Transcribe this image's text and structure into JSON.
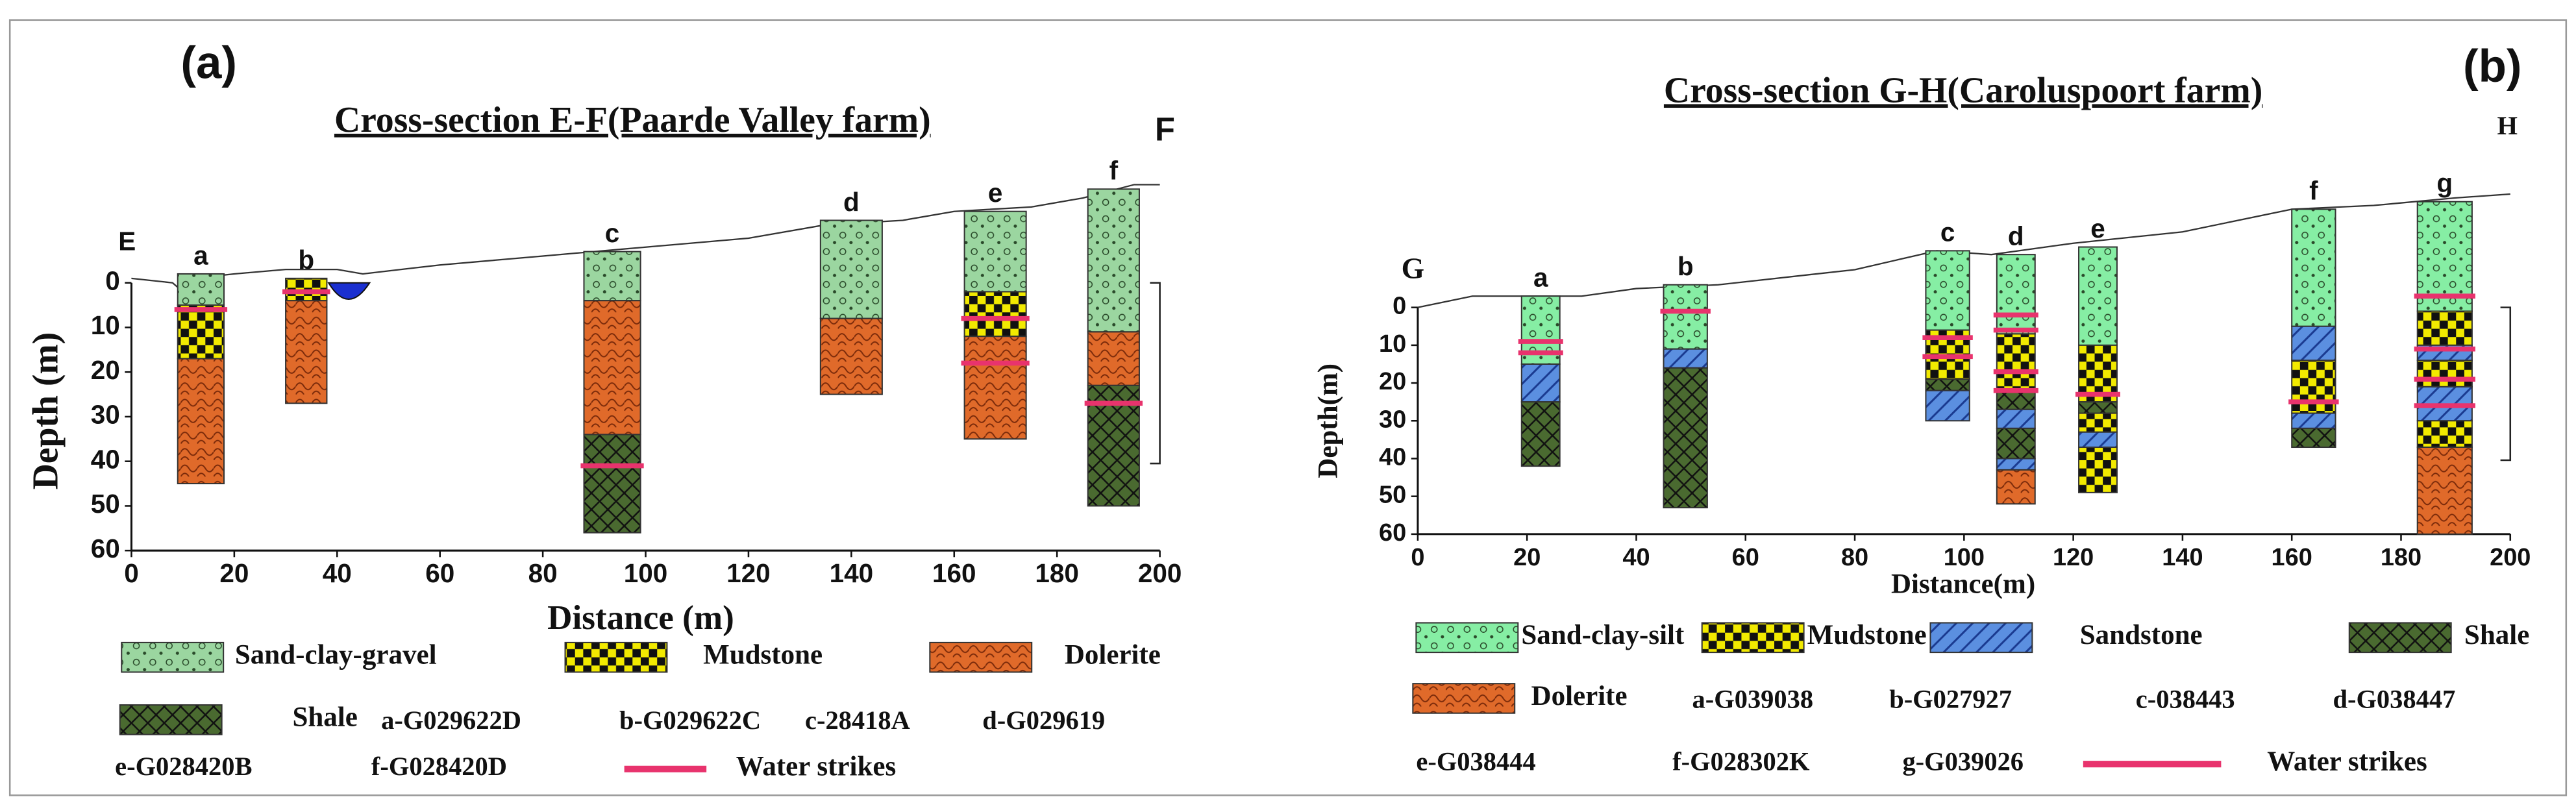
{
  "panels": [
    {
      "label": "(a)",
      "title": "Cross-section E-F(Paarde Valley farm)",
      "start": "E",
      "end": "F",
      "xlabel": "Distance (m)",
      "ylabel": "Depth (m)",
      "xlim": [
        0,
        200
      ],
      "xticks": [
        0,
        20,
        40,
        60,
        80,
        100,
        120,
        140,
        160,
        180,
        200
      ],
      "ylim": [
        0,
        60
      ],
      "yticks": [
        0,
        10,
        20,
        30,
        40,
        50,
        60
      ],
      "surface": {
        "x": [
          0,
          8,
          10,
          12,
          20,
          30,
          40,
          45,
          60,
          80,
          100,
          120,
          135,
          150,
          160,
          175,
          185,
          195,
          200
        ],
        "depth": [
          -1,
          0,
          2,
          -1,
          -2,
          -3,
          -3,
          -2,
          -4,
          -6,
          -8,
          -10,
          -13,
          -14,
          -16,
          -17,
          -19,
          -22,
          -22
        ]
      },
      "lithologies": [
        {
          "name": "Sand-clay-gravel",
          "color": "#9bd6a0",
          "texture": "gravel"
        },
        {
          "name": "Mudstone",
          "color": "#f2ea00",
          "texture": "checker"
        },
        {
          "name": "Dolerite",
          "color": "#e06a2a",
          "texture": "brick"
        },
        {
          "name": "Shale",
          "color": "#4a6a30",
          "texture": "crosshatch"
        }
      ],
      "boreholes": [
        {
          "label": "a",
          "x": [
            9,
            18
          ],
          "water": [
            6
          ],
          "layers": [
            {
              "rock": "Sand-clay-gravel",
              "top": -2,
              "bottom": 5
            },
            {
              "rock": "Mudstone",
              "top": 5,
              "bottom": 17
            },
            {
              "rock": "Dolerite",
              "top": 17,
              "bottom": 45
            }
          ]
        },
        {
          "label": "b",
          "x": [
            30,
            38
          ],
          "water": [
            2
          ],
          "layers": [
            {
              "rock": "Mudstone",
              "top": -1,
              "bottom": 4
            },
            {
              "rock": "Dolerite",
              "top": 4,
              "bottom": 27
            }
          ]
        },
        {
          "label": "c",
          "x": [
            88,
            99
          ],
          "water": [
            41
          ],
          "layers": [
            {
              "rock": "Sand-clay-gravel",
              "top": -7,
              "bottom": 4
            },
            {
              "rock": "Dolerite",
              "top": 4,
              "bottom": 34
            },
            {
              "rock": "Shale",
              "top": 34,
              "bottom": 56
            }
          ]
        },
        {
          "label": "d",
          "x": [
            134,
            146
          ],
          "water": [],
          "layers": [
            {
              "rock": "Sand-clay-gravel",
              "top": -14,
              "bottom": 8
            },
            {
              "rock": "Dolerite",
              "top": 8,
              "bottom": 25
            }
          ]
        },
        {
          "label": "e",
          "x": [
            162,
            174
          ],
          "water": [
            8,
            18
          ],
          "layers": [
            {
              "rock": "Sand-clay-gravel",
              "top": -16,
              "bottom": 2
            },
            {
              "rock": "Mudstone",
              "top": 2,
              "bottom": 12
            },
            {
              "rock": "Dolerite",
              "top": 12,
              "bottom": 35
            }
          ]
        },
        {
          "label": "f",
          "x": [
            186,
            196
          ],
          "water": [
            27
          ],
          "layers": [
            {
              "rock": "Sand-clay-gravel",
              "top": -21,
              "bottom": 11
            },
            {
              "rock": "Dolerite",
              "top": 11,
              "bottom": 23
            },
            {
              "rock": "Shale",
              "top": 23,
              "bottom": 50
            }
          ]
        }
      ],
      "key": [
        "a-G029622D",
        "b-G029622C",
        "c-28418A",
        "d-G029619",
        "e-G028420B",
        "f-G028420D"
      ],
      "water_label": "Water strikes",
      "water_color": "#e8336d"
    },
    {
      "label": "(b)",
      "title": "Cross-section G-H(Caroluspoort farm)",
      "start": "G",
      "end": "H",
      "xlabel": "Distance(m)",
      "ylabel": "Depth(m)",
      "xlim": [
        0,
        200
      ],
      "xticks": [
        0,
        20,
        40,
        60,
        80,
        100,
        120,
        140,
        160,
        180,
        200
      ],
      "ylim": [
        0,
        60
      ],
      "yticks": [
        0,
        10,
        20,
        30,
        40,
        50,
        60
      ],
      "surface": {
        "x": [
          0,
          10,
          20,
          30,
          40,
          55,
          80,
          95,
          105,
          110,
          120,
          140,
          160,
          175,
          190,
          200
        ],
        "depth": [
          0,
          -3,
          -3,
          -3,
          -5,
          -6,
          -10,
          -15,
          -14,
          -15,
          -17,
          -20,
          -26,
          -27,
          -29,
          -30
        ]
      },
      "lithologies": [
        {
          "name": "Sand-clay-silt",
          "color": "#86eea4",
          "texture": "gravel"
        },
        {
          "name": "Mudstone",
          "color": "#f2ea00",
          "texture": "checker"
        },
        {
          "name": "Sandstone",
          "color": "#5b8fe0",
          "texture": "hatch"
        },
        {
          "name": "Shale",
          "color": "#4a6a30",
          "texture": "crosshatch"
        },
        {
          "name": "Dolerite",
          "color": "#e06a2a",
          "texture": "brick"
        }
      ],
      "boreholes": [
        {
          "label": "a",
          "x": [
            19,
            26
          ],
          "water": [
            9,
            12
          ],
          "layers": [
            {
              "rock": "Sand-clay-silt",
              "top": -3,
              "bottom": 15
            },
            {
              "rock": "Sandstone",
              "top": 15,
              "bottom": 25
            },
            {
              "rock": "Shale",
              "top": 25,
              "bottom": 42
            }
          ]
        },
        {
          "label": "b",
          "x": [
            45,
            53
          ],
          "water": [
            1
          ],
          "layers": [
            {
              "rock": "Sand-clay-silt",
              "top": -6,
              "bottom": 11
            },
            {
              "rock": "Sandstone",
              "top": 11,
              "bottom": 16
            },
            {
              "rock": "Shale",
              "top": 16,
              "bottom": 53
            }
          ]
        },
        {
          "label": "c",
          "x": [
            93,
            101
          ],
          "water": [
            8,
            13
          ],
          "layers": [
            {
              "rock": "Sand-clay-silt",
              "top": -15,
              "bottom": 6
            },
            {
              "rock": "Mudstone",
              "top": 6,
              "bottom": 19
            },
            {
              "rock": "Shale",
              "top": 19,
              "bottom": 22
            },
            {
              "rock": "Sandstone",
              "top": 22,
              "bottom": 30
            }
          ]
        },
        {
          "label": "d",
          "x": [
            106,
            113
          ],
          "water": [
            2,
            6,
            17,
            22
          ],
          "layers": [
            {
              "rock": "Sand-clay-silt",
              "top": -14,
              "bottom": 7
            },
            {
              "rock": "Mudstone",
              "top": 7,
              "bottom": 22
            },
            {
              "rock": "Shale",
              "top": 22,
              "bottom": 27
            },
            {
              "rock": "Sandstone",
              "top": 27,
              "bottom": 32
            },
            {
              "rock": "Shale",
              "top": 32,
              "bottom": 40
            },
            {
              "rock": "Sandstone",
              "top": 40,
              "bottom": 43
            },
            {
              "rock": "Dolerite",
              "top": 43,
              "bottom": 52
            }
          ]
        },
        {
          "label": "e",
          "x": [
            121,
            128
          ],
          "water": [
            23
          ],
          "layers": [
            {
              "rock": "Sand-clay-silt",
              "top": -16,
              "bottom": 10
            },
            {
              "rock": "Mudstone",
              "top": 10,
              "bottom": 25
            },
            {
              "rock": "Shale",
              "top": 25,
              "bottom": 28
            },
            {
              "rock": "Mudstone",
              "top": 28,
              "bottom": 33
            },
            {
              "rock": "Sandstone",
              "top": 33,
              "bottom": 37
            },
            {
              "rock": "Mudstone",
              "top": 37,
              "bottom": 49
            }
          ]
        },
        {
          "label": "f",
          "x": [
            160,
            168
          ],
          "water": [
            25
          ],
          "layers": [
            {
              "rock": "Sand-clay-silt",
              "top": -26,
              "bottom": 5
            },
            {
              "rock": "Sandstone",
              "top": 5,
              "bottom": 14
            },
            {
              "rock": "Mudstone",
              "top": 14,
              "bottom": 28
            },
            {
              "rock": "Sandstone",
              "top": 28,
              "bottom": 32
            },
            {
              "rock": "Shale",
              "top": 32,
              "bottom": 37
            }
          ]
        },
        {
          "label": "g",
          "x": [
            183,
            193
          ],
          "water": [
            -3,
            11,
            19,
            26
          ],
          "layers": [
            {
              "rock": "Sand-clay-silt",
              "top": -28,
              "bottom": 1
            },
            {
              "rock": "Mudstone",
              "top": 1,
              "bottom": 10
            },
            {
              "rock": "Sandstone",
              "top": 10,
              "bottom": 14
            },
            {
              "rock": "Mudstone",
              "top": 14,
              "bottom": 21
            },
            {
              "rock": "Sandstone",
              "top": 21,
              "bottom": 30
            },
            {
              "rock": "Mudstone",
              "top": 30,
              "bottom": 37
            },
            {
              "rock": "Dolerite",
              "top": 37,
              "bottom": 60
            }
          ]
        }
      ],
      "key": [
        "a-G039038",
        "b-G027927",
        "c-038443",
        "d-G038447",
        "e-G038444",
        "f-G028302K",
        "g-G039026"
      ],
      "water_label": "Water strikes",
      "water_color": "#e8336d"
    }
  ]
}
